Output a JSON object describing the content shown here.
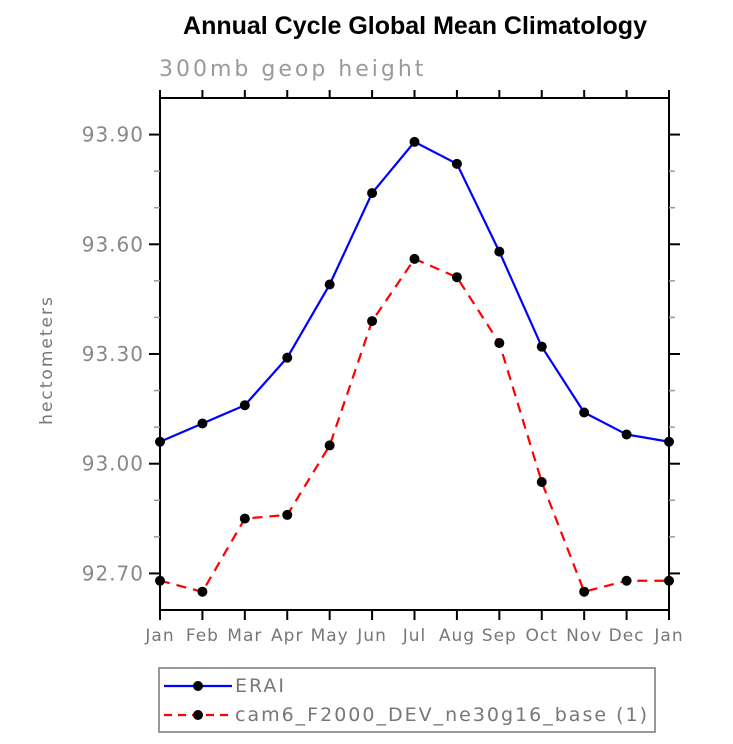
{
  "chart_data": {
    "type": "line",
    "title": "Annual Cycle Global Mean Climatology",
    "subtitle": "300mb geop height",
    "xlabel": "",
    "ylabel": "hectometers",
    "categories": [
      "Jan",
      "Feb",
      "Mar",
      "Apr",
      "May",
      "Jun",
      "Jul",
      "Aug",
      "Sep",
      "Oct",
      "Nov",
      "Dec",
      "Jan"
    ],
    "ylim": [
      92.6,
      94.0
    ],
    "yticks_major": [
      92.7,
      93.0,
      93.3,
      93.6,
      93.9
    ],
    "ytick_labels": [
      "92.70",
      "93.00",
      "93.30",
      "93.60",
      "93.90"
    ],
    "yminor_step": 0.1,
    "grid": false,
    "legend_position": "bottom",
    "series": [
      {
        "name": "ERAI",
        "color": "#0000ff",
        "style": "solid",
        "marker": "circle",
        "marker_color": "#000000",
        "values": [
          93.06,
          93.11,
          93.16,
          93.29,
          93.49,
          93.74,
          93.88,
          93.82,
          93.58,
          93.32,
          93.14,
          93.08,
          93.06
        ]
      },
      {
        "name": "cam6_F2000_DEV_ne30g16_base (1)",
        "color": "#ff0000",
        "style": "dashed",
        "marker": "circle",
        "marker_color": "#000000",
        "values": [
          92.68,
          92.65,
          92.85,
          92.86,
          93.05,
          93.39,
          93.56,
          93.51,
          93.33,
          92.95,
          92.65,
          92.68,
          92.68
        ]
      }
    ]
  }
}
